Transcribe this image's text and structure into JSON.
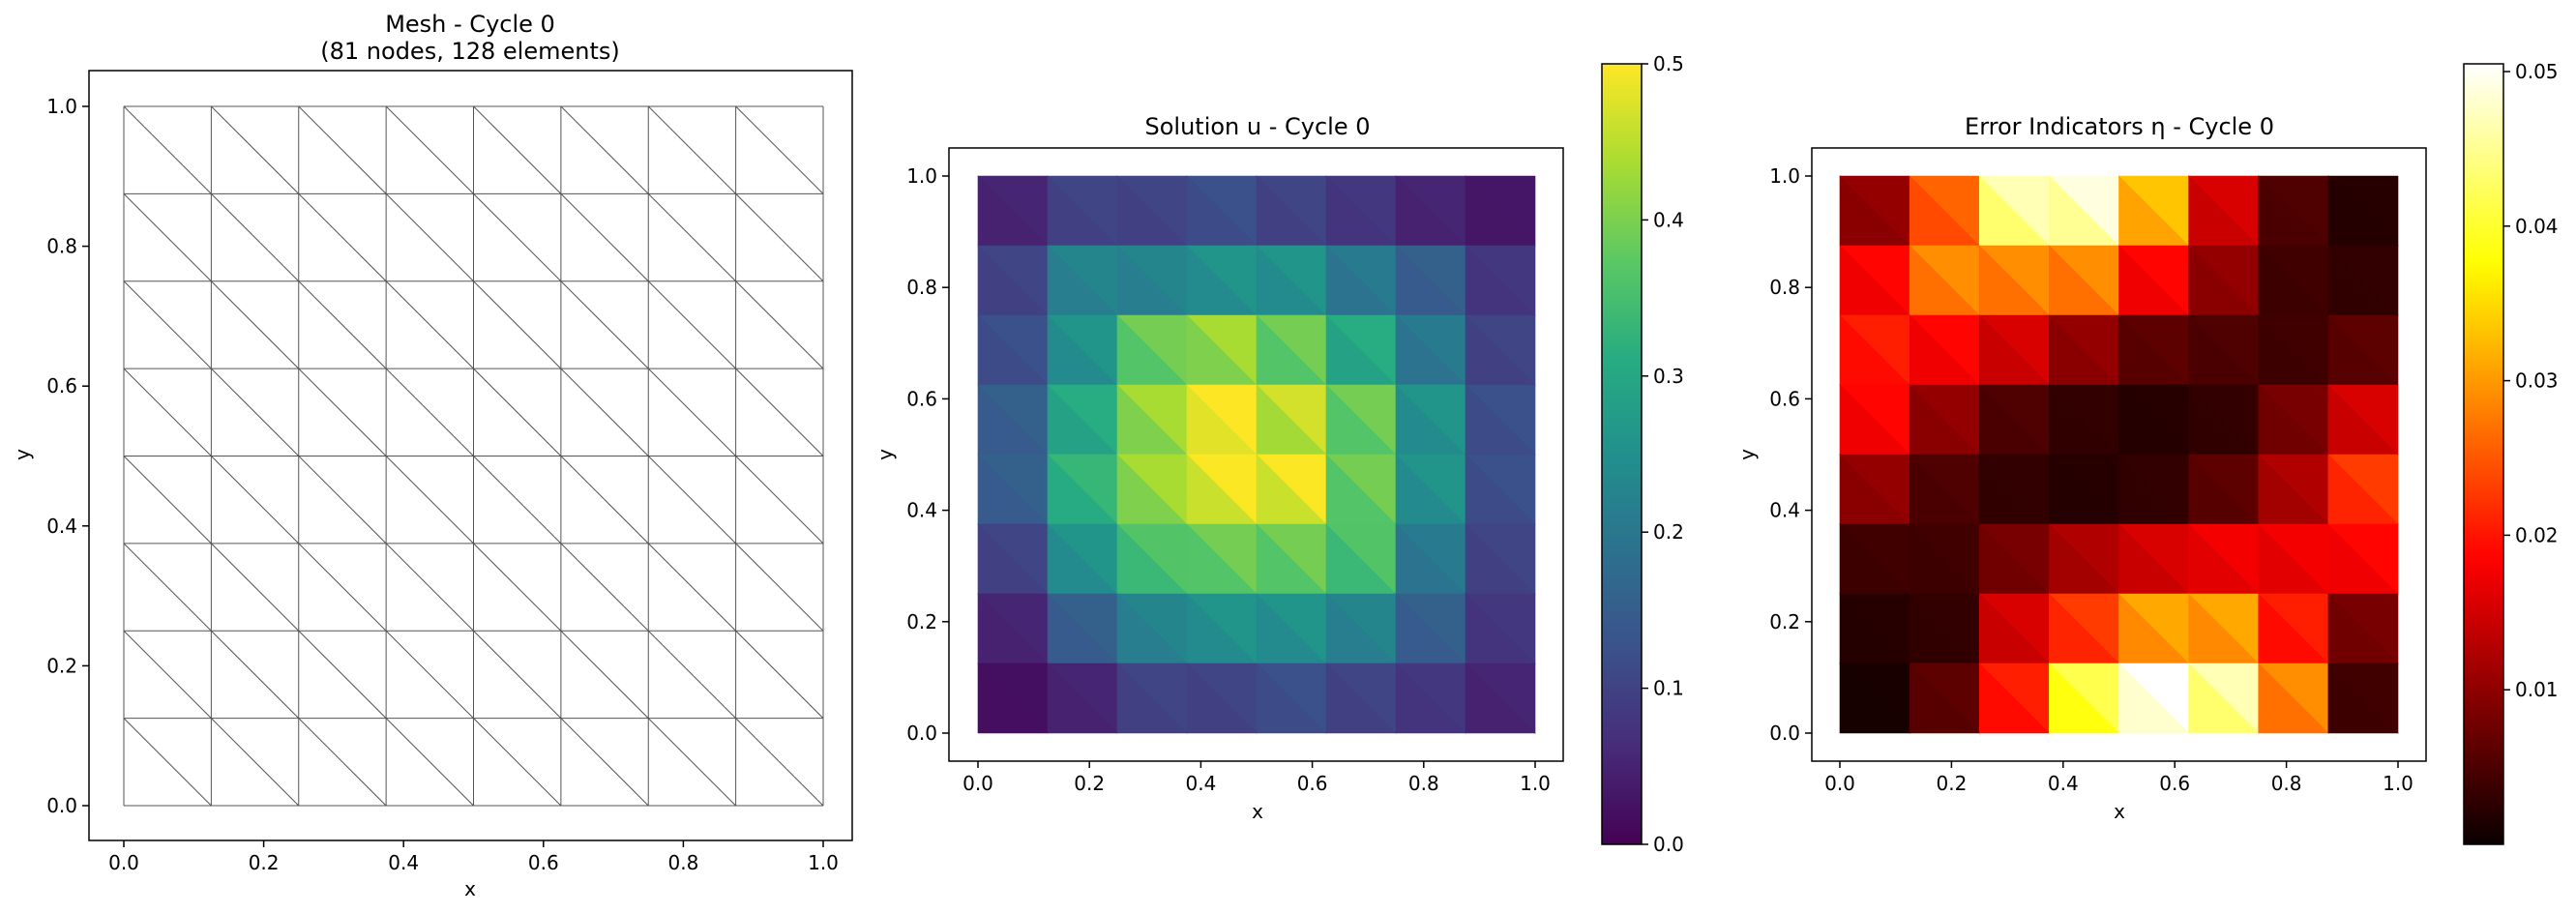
{
  "chart_data": [
    {
      "type": "mesh",
      "title_line1": "Mesh - Cycle 0",
      "title_line2": "(81 nodes, 128 elements)",
      "xlabel": "x",
      "ylabel": "y",
      "xlim": [
        0,
        1
      ],
      "ylim": [
        0,
        1
      ],
      "grid_divisions": 8,
      "diagonal": "top-left to bottom-right",
      "xticks": [
        "0.0",
        "0.2",
        "0.4",
        "0.6",
        "0.8",
        "1.0"
      ],
      "yticks": [
        "0.0",
        "0.2",
        "0.4",
        "0.6",
        "0.8",
        "1.0"
      ],
      "line_color": "#555555"
    },
    {
      "type": "heatmap",
      "title": "Solution u - Cycle 0",
      "xlabel": "x",
      "ylabel": "y",
      "xlim": [
        0,
        1
      ],
      "ylim": [
        0,
        1
      ],
      "colormap": "viridis",
      "color_range": [
        0,
        0.5
      ],
      "colorbar_ticks": [
        "0.0",
        "0.1",
        "0.2",
        "0.3",
        "0.4",
        "0.5"
      ],
      "xticks": [
        "0.0",
        "0.2",
        "0.4",
        "0.6",
        "0.8",
        "1.0"
      ],
      "yticks": [
        "0.0",
        "0.2",
        "0.4",
        "0.6",
        "0.8",
        "1.0"
      ],
      "cells_rows_top_to_bottom": [
        [
          0.05,
          0.1,
          0.1,
          0.12,
          0.1,
          0.08,
          0.05,
          0.03
        ],
        [
          0.1,
          0.22,
          0.22,
          0.25,
          0.25,
          0.2,
          0.15,
          0.08
        ],
        [
          0.12,
          0.25,
          0.38,
          0.42,
          0.38,
          0.3,
          0.2,
          0.1
        ],
        [
          0.15,
          0.3,
          0.42,
          0.5,
          0.45,
          0.38,
          0.25,
          0.12
        ],
        [
          0.15,
          0.32,
          0.42,
          0.48,
          0.48,
          0.38,
          0.25,
          0.12
        ],
        [
          0.1,
          0.25,
          0.35,
          0.38,
          0.38,
          0.35,
          0.2,
          0.1
        ],
        [
          0.05,
          0.15,
          0.22,
          0.25,
          0.25,
          0.22,
          0.15,
          0.08
        ],
        [
          0.02,
          0.05,
          0.1,
          0.1,
          0.12,
          0.1,
          0.08,
          0.05
        ]
      ]
    },
    {
      "type": "heatmap",
      "title": "Error Indicators η - Cycle 0",
      "xlabel": "x",
      "ylabel": "y",
      "xlim": [
        0,
        1
      ],
      "ylim": [
        0,
        1
      ],
      "colormap": "hot",
      "color_range": [
        0,
        0.0505
      ],
      "colorbar_ticks": [
        "0.01",
        "0.02",
        "0.03",
        "0.04",
        "0.05"
      ],
      "colorbar_tick_values": [
        0.01,
        0.02,
        0.03,
        0.04,
        0.05
      ],
      "xticks": [
        "0.0",
        "0.2",
        "0.4",
        "0.6",
        "0.8",
        "1.0"
      ],
      "yticks": [
        "0.0",
        "0.2",
        "0.4",
        "0.6",
        "0.8",
        "1.0"
      ],
      "cells_rows_top_to_bottom": [
        [
          0.01,
          0.025,
          0.045,
          0.047,
          0.032,
          0.015,
          0.005,
          0.002
        ],
        [
          0.018,
          0.028,
          0.028,
          0.028,
          0.018,
          0.01,
          0.004,
          0.003
        ],
        [
          0.02,
          0.018,
          0.015,
          0.01,
          0.006,
          0.005,
          0.004,
          0.006
        ],
        [
          0.018,
          0.01,
          0.005,
          0.003,
          0.002,
          0.003,
          0.008,
          0.015
        ],
        [
          0.01,
          0.005,
          0.003,
          0.002,
          0.003,
          0.006,
          0.012,
          0.022
        ],
        [
          0.004,
          0.004,
          0.008,
          0.012,
          0.015,
          0.017,
          0.017,
          0.018
        ],
        [
          0.002,
          0.003,
          0.015,
          0.022,
          0.03,
          0.03,
          0.02,
          0.008
        ],
        [
          0.001,
          0.006,
          0.02,
          0.04,
          0.05,
          0.045,
          0.028,
          0.004
        ]
      ]
    }
  ]
}
